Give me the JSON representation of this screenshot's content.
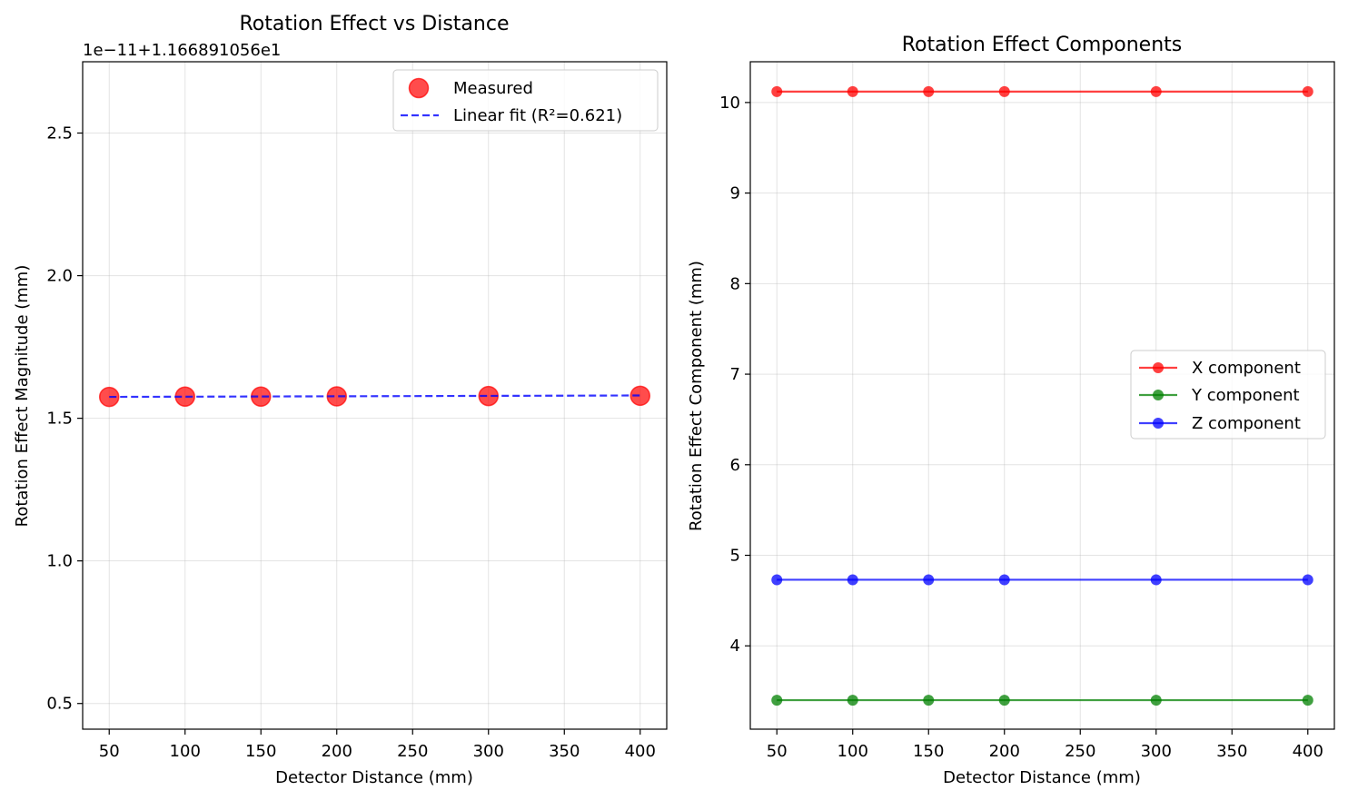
{
  "chart_data": [
    {
      "type": "scatter",
      "title": "Rotation Effect vs Distance",
      "xlabel": "Detector Distance (mm)",
      "ylabel": "Rotation Effect Magnitude (mm)",
      "y_offset_label": "1e−11+1.166891056e1",
      "xlim": [
        32.5,
        417.5
      ],
      "ylim": [
        0.41,
        2.75
      ],
      "xticks": [
        50,
        100,
        150,
        200,
        250,
        300,
        350,
        400
      ],
      "xtick_labels": [
        "50",
        "100",
        "150",
        "200",
        "250",
        "300",
        "350",
        "400"
      ],
      "yticks": [
        0.5,
        1.0,
        1.5,
        2.0,
        2.5
      ],
      "ytick_labels": [
        "0.5",
        "1.0",
        "1.5",
        "2.0",
        "2.5"
      ],
      "grid": true,
      "legend_position": "top-right",
      "series": [
        {
          "name": "Measured",
          "kind": "scatter",
          "color": "#ff0000",
          "x": [
            50,
            100,
            150,
            200,
            300,
            400
          ],
          "y": [
            1.575,
            1.576,
            1.576,
            1.577,
            1.578,
            1.579
          ]
        },
        {
          "name": "Linear fit (R²=0.621)",
          "kind": "dashed-line",
          "color": "#0000ff",
          "x": [
            50,
            400
          ],
          "y": [
            1.575,
            1.58
          ]
        }
      ]
    },
    {
      "type": "line",
      "title": "Rotation Effect Components",
      "xlabel": "Detector Distance (mm)",
      "ylabel": "Rotation Effect Component (mm)",
      "xlim": [
        32.5,
        417.5
      ],
      "ylim": [
        3.08,
        10.45
      ],
      "xticks": [
        50,
        100,
        150,
        200,
        250,
        300,
        350,
        400
      ],
      "xtick_labels": [
        "50",
        "100",
        "150",
        "200",
        "250",
        "300",
        "350",
        "400"
      ],
      "yticks": [
        4,
        5,
        6,
        7,
        8,
        9,
        10
      ],
      "ytick_labels": [
        "4",
        "5",
        "6",
        "7",
        "8",
        "9",
        "10"
      ],
      "grid": true,
      "legend_position": "center-right",
      "series": [
        {
          "name": "X component",
          "color": "#ff0000",
          "x": [
            50,
            100,
            150,
            200,
            300,
            400
          ],
          "y": [
            10.12,
            10.12,
            10.12,
            10.12,
            10.12,
            10.12
          ]
        },
        {
          "name": "Y component",
          "color": "#008000",
          "x": [
            50,
            100,
            150,
            200,
            300,
            400
          ],
          "y": [
            3.4,
            3.4,
            3.4,
            3.4,
            3.4,
            3.4
          ]
        },
        {
          "name": "Z component",
          "color": "#0000ff",
          "x": [
            50,
            100,
            150,
            200,
            300,
            400
          ],
          "y": [
            4.73,
            4.73,
            4.73,
            4.73,
            4.73,
            4.73
          ]
        }
      ]
    }
  ]
}
